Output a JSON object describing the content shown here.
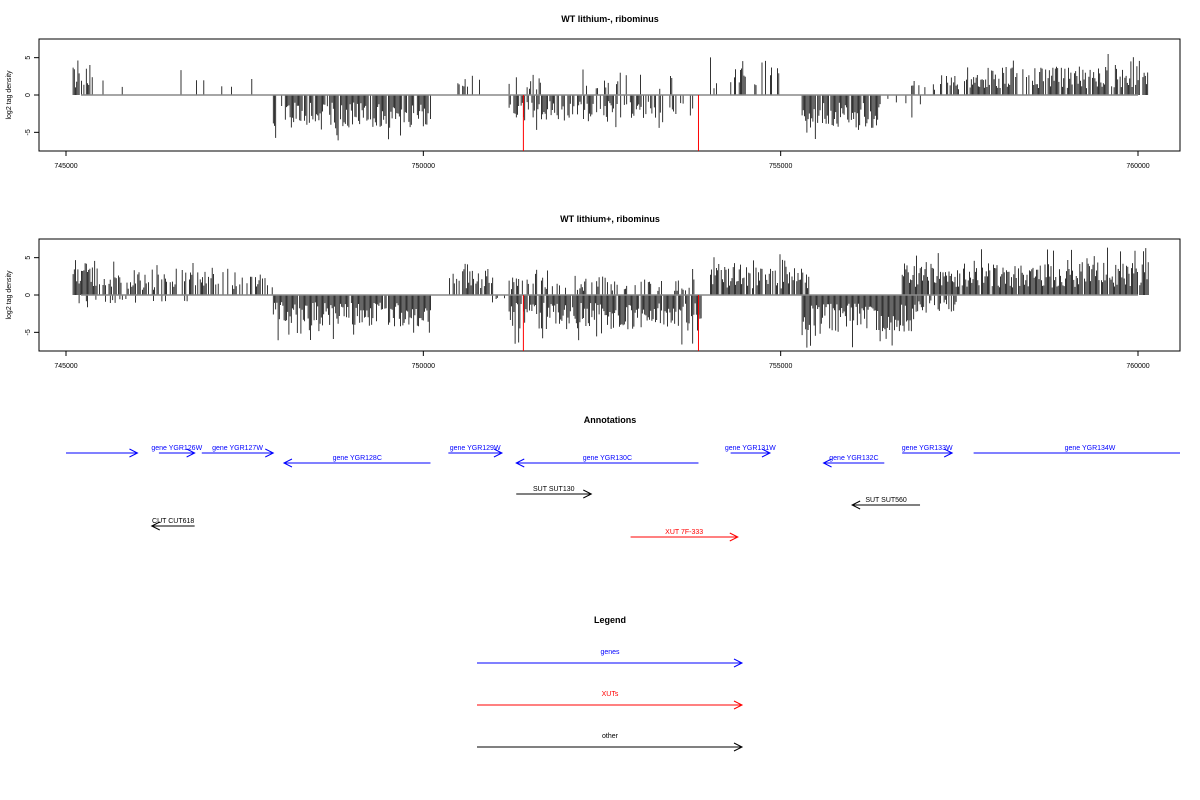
{
  "chart_data": [
    {
      "type": "bar",
      "title": "WT lithium-, ribominus",
      "xlabel": "",
      "ylabel": "log2 tag density",
      "xlim": [
        745000,
        760000
      ],
      "ylim": [
        -7.5,
        7.5
      ],
      "xticks": [
        745000,
        750000,
        755000,
        760000
      ],
      "yticks": [
        -5,
        0,
        5
      ],
      "positive_segments": [
        {
          "from": 745100,
          "to": 745350,
          "level": 3.5,
          "fill": 0.8
        },
        {
          "from": 745350,
          "to": 747700,
          "level": 2.5,
          "fill": 0.12
        },
        {
          "from": 750400,
          "to": 751000,
          "level": 2.5,
          "fill": 0.25
        },
        {
          "from": 751200,
          "to": 751800,
          "level": 2.5,
          "fill": 0.2
        },
        {
          "from": 752200,
          "to": 753600,
          "level": 2.5,
          "fill": 0.18
        },
        {
          "from": 754000,
          "to": 755000,
          "level": 3.5,
          "fill": 0.35
        },
        {
          "from": 756800,
          "to": 757600,
          "level": 2.5,
          "fill": 0.4
        },
        {
          "from": 757600,
          "to": 760150,
          "level": 3.5,
          "fill": 0.85
        }
      ],
      "negative_segments": [
        {
          "from": 747900,
          "to": 750100,
          "level": 4.0,
          "fill": 0.9
        },
        {
          "from": 751200,
          "to": 753800,
          "level": 3.0,
          "fill": 0.65
        },
        {
          "from": 755300,
          "to": 756400,
          "level": 4.0,
          "fill": 0.9
        },
        {
          "from": 756400,
          "to": 757000,
          "level": 2.0,
          "fill": 0.1
        }
      ],
      "highlights": [
        {
          "x": 751400,
          "y": -7.5,
          "color": "#ff0000"
        },
        {
          "x": 753850,
          "y": -7.5,
          "color": "#ff0000"
        }
      ]
    },
    {
      "type": "bar",
      "title": "WT lithium+, ribominus",
      "xlabel": "",
      "ylabel": "log2 tag density",
      "xlim": [
        745000,
        760000
      ],
      "ylim": [
        -7.5,
        7.5
      ],
      "xticks": [
        745000,
        750000,
        755000,
        760000
      ],
      "yticks": [
        -5,
        0,
        5
      ],
      "positive_segments": [
        {
          "from": 745100,
          "to": 745450,
          "level": 4.5,
          "fill": 0.9
        },
        {
          "from": 745450,
          "to": 747900,
          "level": 2.8,
          "fill": 0.55
        },
        {
          "from": 750350,
          "to": 751000,
          "level": 3.0,
          "fill": 0.55
        },
        {
          "from": 751200,
          "to": 753800,
          "level": 2.2,
          "fill": 0.4
        },
        {
          "from": 754000,
          "to": 755400,
          "level": 3.5,
          "fill": 0.8
        },
        {
          "from": 756700,
          "to": 760150,
          "level": 4.0,
          "fill": 0.95
        }
      ],
      "negative_segments": [
        {
          "from": 745100,
          "to": 746700,
          "level": 1.2,
          "fill": 0.15
        },
        {
          "from": 747900,
          "to": 750100,
          "level": 3.8,
          "fill": 0.95
        },
        {
          "from": 750800,
          "to": 751200,
          "level": 1.2,
          "fill": 0.2
        },
        {
          "from": 751200,
          "to": 753900,
          "level": 4.2,
          "fill": 0.95
        },
        {
          "from": 755300,
          "to": 756900,
          "level": 4.5,
          "fill": 0.97
        },
        {
          "from": 756900,
          "to": 757500,
          "level": 2.0,
          "fill": 0.4
        }
      ],
      "highlights": [
        {
          "x": 751400,
          "y": -7.5,
          "color": "#ff0000"
        },
        {
          "x": 753850,
          "y": -7.5,
          "color": "#ff0000"
        }
      ]
    }
  ],
  "annotations": {
    "title": "Annotations",
    "features": [
      {
        "label": "",
        "from": 745000,
        "to": 746000,
        "strand": "+",
        "kind": "gene",
        "color": "#0000ff",
        "row": 1
      },
      {
        "label": "gene YGR126W",
        "from": 746300,
        "to": 746800,
        "strand": "+",
        "kind": "gene",
        "color": "#0000ff",
        "row": 1
      },
      {
        "label": "gene YGR127W",
        "from": 746900,
        "to": 747900,
        "strand": "+",
        "kind": "gene",
        "color": "#0000ff",
        "row": 1
      },
      {
        "label": "gene YGR128C",
        "from": 748050,
        "to": 750100,
        "strand": "-",
        "kind": "gene",
        "color": "#0000ff",
        "row": 2
      },
      {
        "label": "gene YGR129W",
        "from": 750350,
        "to": 751100,
        "strand": "+",
        "kind": "gene",
        "color": "#0000ff",
        "row": 1
      },
      {
        "label": "gene YGR130C",
        "from": 751300,
        "to": 753850,
        "strand": "-",
        "kind": "gene",
        "color": "#0000ff",
        "row": 2
      },
      {
        "label": "gene YGR131W",
        "from": 754300,
        "to": 754850,
        "strand": "+",
        "kind": "gene",
        "color": "#0000ff",
        "row": 1
      },
      {
        "label": "gene YGR132C",
        "from": 755600,
        "to": 756450,
        "strand": "-",
        "kind": "gene",
        "color": "#0000ff",
        "row": 2
      },
      {
        "label": "gene YGR133W",
        "from": 756700,
        "to": 757400,
        "strand": "+",
        "kind": "gene",
        "color": "#0000ff",
        "row": 1
      },
      {
        "label": "gene YGR134W",
        "from": 757700,
        "to": 760800,
        "strand": "+",
        "kind": "gene",
        "color": "#0000ff",
        "row": 1
      },
      {
        "label": "SUT SUT130",
        "from": 751300,
        "to": 752350,
        "strand": "+",
        "kind": "other",
        "color": "#000000",
        "row": 3
      },
      {
        "label": "SUT SUT560",
        "from": 756000,
        "to": 756950,
        "strand": "-",
        "kind": "other",
        "color": "#000000",
        "row": 4
      },
      {
        "label": "CUT CUT618",
        "from": 746200,
        "to": 746800,
        "strand": "-",
        "kind": "other",
        "color": "#000000",
        "row": 5
      },
      {
        "label": "XUT 7F-333",
        "from": 752900,
        "to": 754400,
        "strand": "+",
        "kind": "XUT",
        "color": "#ff0000",
        "row": 6
      }
    ]
  },
  "legend": {
    "title": "Legend",
    "items": [
      {
        "label": "genes",
        "color": "#0000ff"
      },
      {
        "label": "XUTs",
        "color": "#ff0000"
      },
      {
        "label": "other",
        "color": "#000000"
      }
    ]
  }
}
